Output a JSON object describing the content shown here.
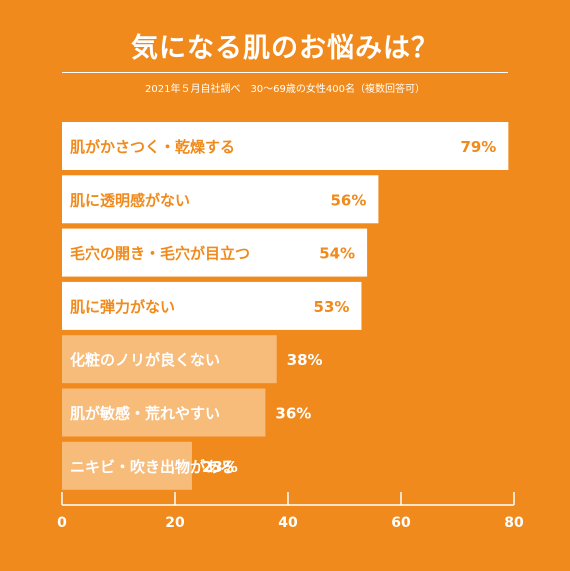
{
  "title": "気になる肌のお悩みは？",
  "subtitle": "2021年５月自社調べ　30～69歳の女性400名（複数回答可）",
  "colors": {
    "background": "#f08a1c",
    "bar_primary": "#ffffff",
    "bar_secondary": "#f7bb7a",
    "label_on_primary": "#f08a1c",
    "label_on_secondary": "#ffffff"
  },
  "chart_data": {
    "type": "bar",
    "orientation": "horizontal",
    "categories": [
      "肌がかさつく・乾燥する",
      "肌に透明感がない",
      "毛穴の開き・毛穴が目立つ",
      "肌に弾力がない",
      "化粧のノリが良くない",
      "肌が敏感・荒れやすい",
      "ニキビ・吹き出物がある"
    ],
    "values": [
      79,
      56,
      54,
      53,
      38,
      36,
      23
    ],
    "value_labels": [
      "79%",
      "56%",
      "54%",
      "53%",
      "38%",
      "36%",
      "23%"
    ],
    "highlight": [
      true,
      true,
      true,
      true,
      false,
      false,
      false
    ],
    "xlim": [
      0,
      80
    ],
    "xticks": [
      0,
      20,
      40,
      60,
      80
    ],
    "grid": false
  }
}
